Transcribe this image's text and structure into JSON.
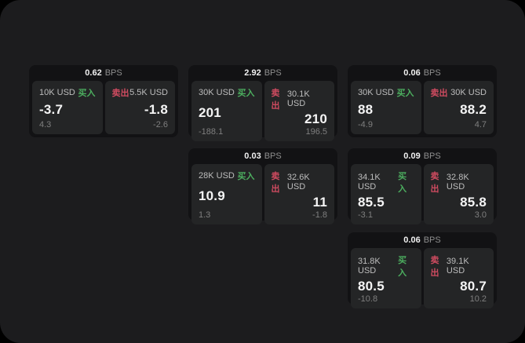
{
  "labels": {
    "bps_unit": "BPS",
    "buy": "买入",
    "sell": "卖出"
  },
  "colors": {
    "buy_accent": "#4cae5f",
    "sell_accent": "#cf4b60",
    "panel_background": "#1c1c1e",
    "card_background": "#121214",
    "tile_background": "#242526"
  },
  "cards": [
    {
      "bps": "0.62",
      "buy": {
        "amount": "10K USD",
        "price": "-3.7",
        "delta": "4.3"
      },
      "sell": {
        "amount": "5.5K USD",
        "price": "-1.8",
        "delta": "-2.6"
      }
    },
    {
      "bps": "2.92",
      "buy": {
        "amount": "30K USD",
        "price": "201",
        "delta": "-188.1"
      },
      "sell": {
        "amount": "30.1K USD",
        "price": "210",
        "delta": "196.5"
      }
    },
    {
      "bps": "0.06",
      "buy": {
        "amount": "30K USD",
        "price": "88",
        "delta": "-4.9"
      },
      "sell": {
        "amount": "30K USD",
        "price": "88.2",
        "delta": "4.7"
      }
    },
    {
      "bps": "0.03",
      "buy": {
        "amount": "28K USD",
        "price": "10.9",
        "delta": "1.3"
      },
      "sell": {
        "amount": "32.6K USD",
        "price": "11",
        "delta": "-1.8"
      }
    },
    {
      "bps": "0.09",
      "buy": {
        "amount": "34.1K USD",
        "price": "85.5",
        "delta": "-3.1"
      },
      "sell": {
        "amount": "32.8K USD",
        "price": "85.8",
        "delta": "3.0"
      }
    },
    {
      "bps": "0.06",
      "buy": {
        "amount": "31.8K USD",
        "price": "80.5",
        "delta": "-10.8"
      },
      "sell": {
        "amount": "39.1K USD",
        "price": "80.7",
        "delta": "10.2"
      }
    }
  ]
}
